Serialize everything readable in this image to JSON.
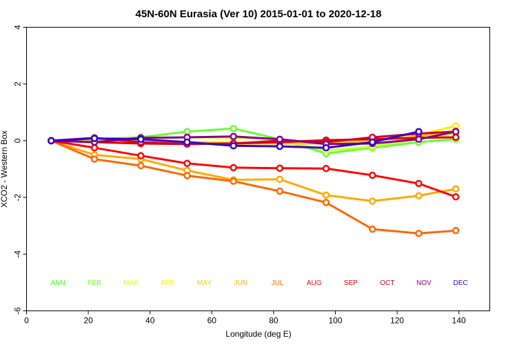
{
  "chart_data": {
    "type": "line",
    "title": "45N-60N Eurasia (Ver 10)   2015-01-01 to 2020-12-18",
    "xlabel": "Longitude (deg E)",
    "ylabel": "XCO2 - Western Box",
    "xlim": [
      0,
      150
    ],
    "ylim": [
      -6,
      4
    ],
    "xticks": [
      0,
      20,
      40,
      60,
      80,
      100,
      120,
      140
    ],
    "yticks": [
      -6,
      -4,
      -2,
      0,
      2,
      4
    ],
    "grid": false,
    "legend_position": "bottom, inside plot area",
    "series": [
      {
        "name": "ANN",
        "color": "#33ff00",
        "x": [
          8
        ],
        "values": [
          0.0
        ]
      },
      {
        "name": "FEB",
        "color": "#66ff33",
        "x": [
          8,
          22,
          37,
          52,
          67,
          82,
          97,
          112,
          127,
          139
        ],
        "values": [
          0.0,
          0.05,
          0.12,
          0.32,
          0.43,
          0.05,
          -0.45,
          -0.25,
          -0.05,
          0.05
        ]
      },
      {
        "name": "MAR",
        "color": "#ccff33",
        "x": [
          8,
          22,
          37,
          52,
          67,
          82,
          97,
          112,
          127,
          139
        ],
        "values": [
          0.0,
          0.0,
          0.05,
          0.12,
          0.1,
          0.02,
          -0.35,
          -0.2,
          0.05,
          0.25
        ]
      },
      {
        "name": "APR",
        "color": "#ffee00",
        "x": [
          8,
          22,
          37,
          52,
          67,
          82,
          97,
          112,
          127,
          139
        ],
        "values": [
          0.0,
          -0.05,
          -0.05,
          -0.05,
          -0.05,
          -0.1,
          -0.1,
          0.0,
          0.2,
          0.52
        ]
      },
      {
        "name": "MAY",
        "color": "#ffcc00",
        "x": [
          8,
          22,
          37,
          52,
          67,
          82,
          97,
          112,
          127,
          139
        ],
        "values": [
          0.0,
          -0.05,
          -0.05,
          -0.05,
          -0.1,
          -0.1,
          -0.1,
          0.0,
          0.15,
          0.35
        ]
      },
      {
        "name": "JUN",
        "color": "#ffaa00",
        "x": [
          8,
          22,
          37,
          52,
          67,
          82,
          97,
          112,
          127,
          139
        ],
        "values": [
          0.0,
          -0.5,
          -0.65,
          -1.05,
          -1.38,
          -1.36,
          -1.92,
          -2.13,
          -1.94,
          -1.7
        ]
      },
      {
        "name": "JUL",
        "color": "#ff6600",
        "x": [
          8,
          22,
          37,
          52,
          67,
          82,
          97,
          112,
          127,
          139
        ],
        "values": [
          0.0,
          -0.65,
          -0.88,
          -1.23,
          -1.43,
          -1.78,
          -2.18,
          -3.12,
          -3.27,
          -3.17
        ]
      },
      {
        "name": "AUG",
        "color": "#ff0000",
        "x": [
          8,
          22,
          37,
          52,
          67,
          82,
          97,
          112,
          127,
          139
        ],
        "values": [
          0.0,
          -0.25,
          -0.53,
          -0.8,
          -0.95,
          -0.97,
          -0.98,
          -1.22,
          -1.51,
          -1.98
        ]
      },
      {
        "name": "SEP",
        "color": "#dd0000",
        "x": [
          8,
          22,
          37,
          52,
          67,
          82,
          97,
          112,
          127,
          139
        ],
        "values": [
          0.0,
          -0.05,
          -0.1,
          -0.12,
          -0.1,
          -0.05,
          0.02,
          0.05,
          0.1,
          0.12
        ]
      },
      {
        "name": "OCT",
        "color": "#cc0033",
        "x": [
          8,
          22,
          37,
          52,
          67,
          82,
          97,
          112,
          127,
          139
        ],
        "values": [
          0.0,
          0.1,
          -0.05,
          -0.12,
          -0.1,
          0.0,
          -0.05,
          0.12,
          0.25,
          0.32
        ]
      },
      {
        "name": "NOV",
        "color": "#880088",
        "x": [
          8,
          22,
          37,
          52,
          67,
          82,
          97,
          112,
          127,
          139
        ],
        "values": [
          0.0,
          -0.05,
          0.1,
          0.12,
          0.15,
          0.05,
          -0.12,
          -0.1,
          0.05,
          0.32
        ]
      },
      {
        "name": "DEC",
        "color": "#3300cc",
        "x": [
          8,
          22,
          37,
          52,
          67,
          82,
          97,
          112,
          127
        ],
        "values": [
          0.0,
          0.08,
          0.05,
          -0.05,
          -0.18,
          -0.2,
          -0.25,
          -0.05,
          0.32
        ]
      }
    ]
  }
}
